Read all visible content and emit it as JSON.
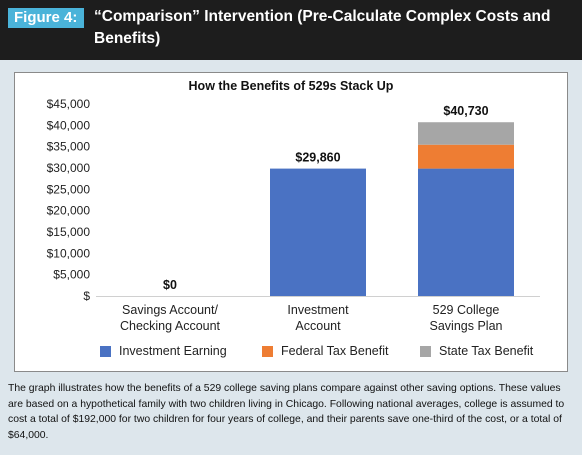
{
  "header": {
    "figure_label": "Figure 4:",
    "title": "“Comparison” Intervention (Pre-Calculate Complex Costs and Benefits)"
  },
  "colors": {
    "header_bg": "#1d1d1d",
    "figure_tag": "#4ab3d9",
    "investment_earning": "#4a72c3",
    "federal_tax_benefit": "#ee7d33",
    "state_tax_benefit": "#a6a6a6"
  },
  "chart_data": {
    "type": "bar",
    "stacked": true,
    "title": "How the Benefits of 529s Stack Up",
    "categories": [
      [
        "Savings Account/",
        "Checking Account"
      ],
      [
        "Investment",
        "Account"
      ],
      [
        "529 College",
        "Savings Plan"
      ]
    ],
    "series": [
      {
        "name": "Investment Earning",
        "values": [
          0,
          29860,
          29860
        ]
      },
      {
        "name": "Federal Tax Benefit",
        "values": [
          0,
          0,
          5600
        ]
      },
      {
        "name": "State Tax Benefit",
        "values": [
          0,
          0,
          5270
        ]
      }
    ],
    "totals": [
      "$0",
      "$29,860",
      "$40,730"
    ],
    "ylim": [
      0,
      45000
    ],
    "yticks": [
      0,
      5000,
      10000,
      15000,
      20000,
      25000,
      30000,
      35000,
      40000,
      45000
    ],
    "ytick_labels": [
      "$",
      "$5,000",
      "$10,000",
      "$15,000",
      "$20,000",
      "$25,000",
      "$30,000",
      "$35,000",
      "$40,000",
      "$45,000"
    ],
    "grid": false,
    "legend_position": "bottom"
  },
  "caption": "The graph illustrates how the benefits of a 529 college saving plans compare against other saving options. These values are based on a hypothetical family with two children living in Chicago. Following national averages, college is assumed to cost a total of $192,000 for two children for four years of college, and their parents save one-third of the cost, or a total of $64,000."
}
